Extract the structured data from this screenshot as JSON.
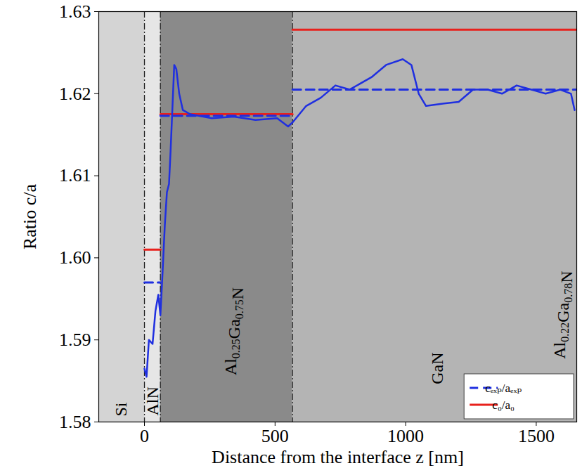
{
  "chart_data": {
    "type": "line",
    "xlabel": "Distance from the interface z [nm]",
    "ylabel": "Ratio c/a",
    "xlim": [
      -175,
      1655
    ],
    "xticks": [
      0,
      500,
      1000,
      1500
    ],
    "ylim": [
      1.58,
      1.63
    ],
    "yticks": [
      1.58,
      1.59,
      {
        "value": 1.6,
        "label": "1.60"
      },
      1.61,
      1.62,
      1.63
    ],
    "grid": false,
    "legend": "bottom-right",
    "regions": [
      {
        "start": -175,
        "end": 0,
        "color": "#d4d4d4"
      },
      {
        "start": 0,
        "end": 61,
        "color": "#e6e6e6"
      },
      {
        "start": 61,
        "end": 567,
        "color": "#8a8a8a"
      },
      {
        "start": 567,
        "end": 1655,
        "color": "#b4b4b4"
      }
    ],
    "boundaries": [
      0,
      61,
      567
    ],
    "annotations": [
      {
        "text": "Si",
        "x": -90,
        "y": 1.5815
      },
      {
        "text": "AlN",
        "x": 30,
        "y": 1.5825
      },
      {
        "text": "Al0.25Ga0.75N",
        "x": 330,
        "y": 1.591
      },
      {
        "text": "GaN",
        "x": 1120,
        "y": 1.5865
      },
      {
        "text": "Al0.22Ga0.78N",
        "x": 1590,
        "y": 1.593
      }
    ],
    "series": [
      {
        "color": "#1f2fe0",
        "line_style": "solid",
        "x": [
          0,
          8,
          17,
          31,
          42,
          53,
          61,
          69,
          78,
          86,
          94,
          100,
          108,
          114,
          122,
          133,
          147,
          175,
          258,
          342,
          425,
          508,
          550,
          567,
          619,
          675,
          731,
          786,
          869,
          925,
          989,
          1022,
          1050,
          1078,
          1147,
          1203,
          1258,
          1314,
          1369,
          1425,
          1481,
          1536,
          1592,
          1633,
          1647
        ],
        "values": [
          1.5865,
          1.5855,
          1.59,
          1.5895,
          1.5935,
          1.5955,
          1.593,
          1.598,
          1.604,
          1.608,
          1.609,
          1.613,
          1.619,
          1.6235,
          1.623,
          1.62,
          1.618,
          1.6175,
          1.617,
          1.6172,
          1.6168,
          1.617,
          1.616,
          1.6165,
          1.6185,
          1.6195,
          1.621,
          1.6205,
          1.622,
          1.6235,
          1.6242,
          1.6235,
          1.62,
          1.6185,
          1.6188,
          1.619,
          1.6205,
          1.6205,
          1.62,
          1.621,
          1.6205,
          1.62,
          1.6205,
          1.62,
          1.618
        ]
      },
      {
        "name": "c₀/a₀",
        "color": "#e8211c",
        "line_style": "solid",
        "segments": [
          {
            "x": [
              0,
              61
            ],
            "value": 1.601
          },
          {
            "x": [
              61,
              567
            ],
            "value": 1.6175
          },
          {
            "x": [
              567,
              1655
            ],
            "value": 1.6278
          }
        ]
      },
      {
        "name": "cₑₓₚ/aₑₓₚ",
        "color": "#1f2fe0",
        "line_style": "dashed",
        "segments": [
          {
            "x": [
              0,
              61
            ],
            "value": 1.597
          },
          {
            "x": [
              61,
              567
            ],
            "value": 1.6173
          },
          {
            "x": [
              567,
              1655
            ],
            "value": 1.6205
          }
        ]
      }
    ]
  }
}
